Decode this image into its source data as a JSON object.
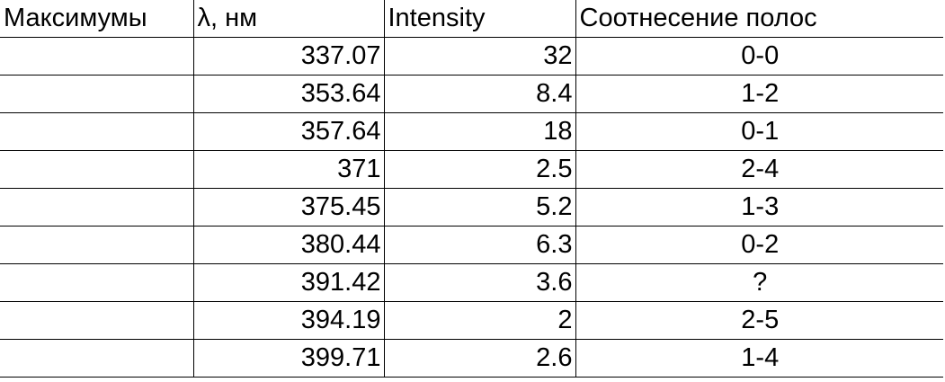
{
  "table": {
    "headers": [
      "Максимумы",
      "λ, нм",
      "Intensity",
      "Соотнесение полос"
    ],
    "rows": [
      {
        "max": "",
        "lambda": "337.07",
        "intensity": "32",
        "assignment": "0-0"
      },
      {
        "max": "",
        "lambda": "353.64",
        "intensity": "8.4",
        "assignment": "1-2"
      },
      {
        "max": "",
        "lambda": "357.64",
        "intensity": "18",
        "assignment": "0-1"
      },
      {
        "max": "",
        "lambda": "371",
        "intensity": "2.5",
        "assignment": "2-4"
      },
      {
        "max": "",
        "lambda": "375.45",
        "intensity": "5.2",
        "assignment": "1-3"
      },
      {
        "max": "",
        "lambda": "380.44",
        "intensity": "6.3",
        "assignment": "0-2"
      },
      {
        "max": "",
        "lambda": "391.42",
        "intensity": "3.6",
        "assignment": "?"
      },
      {
        "max": "",
        "lambda": "394.19",
        "intensity": "2",
        "assignment": "2-5"
      },
      {
        "max": "",
        "lambda": "399.71",
        "intensity": "2.6",
        "assignment": "1-4"
      }
    ]
  }
}
